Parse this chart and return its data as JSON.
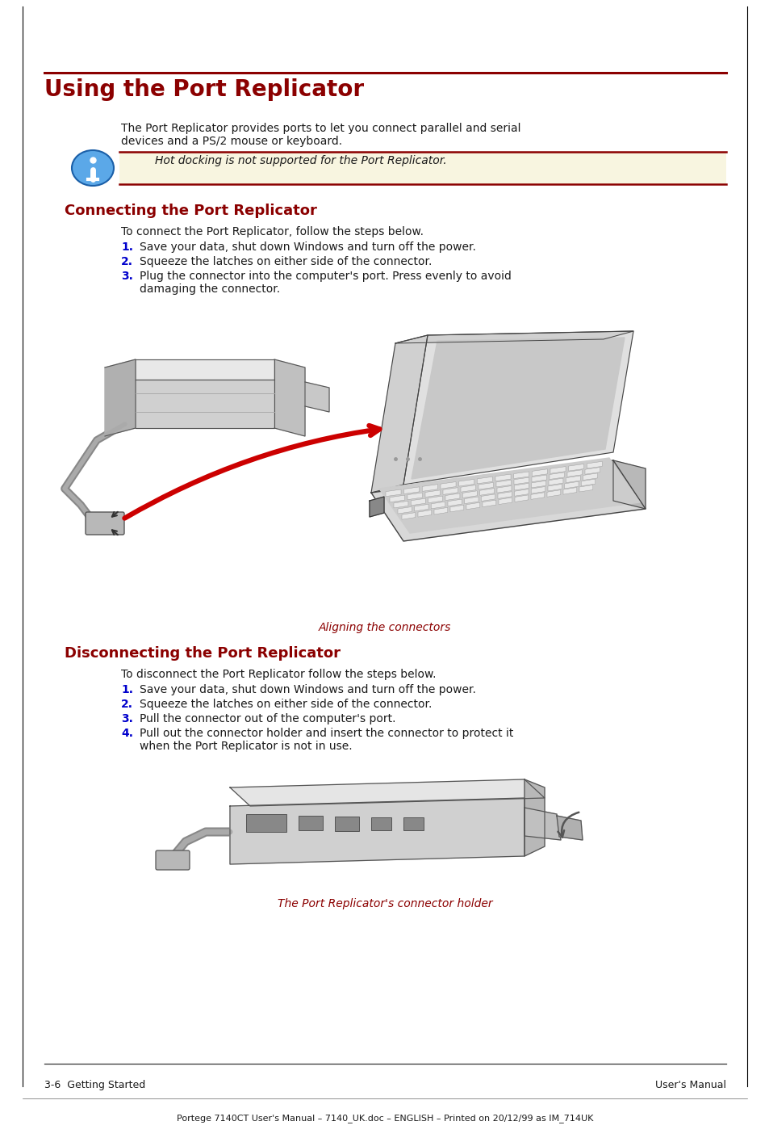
{
  "page_bg": "#ffffff",
  "dark_red": "#8B0000",
  "blue_step": "#0000CC",
  "text_color": "#1a1a1a",
  "note_bg": "#F5F5DC",
  "gray_line": "#333333",
  "main_title": "Using the Port Replicator",
  "intro_text_line1": "The Port Replicator provides ports to let you connect parallel and serial",
  "intro_text_line2": "devices and a PS/2 mouse or keyboard.",
  "note_text": "Hot docking is not supported for the Port Replicator.",
  "section1_title": "Connecting the Port Replicator",
  "connect_intro": "To connect the Port Replicator, follow the steps below.",
  "connect_step1": "Save your data, shut down Windows and turn off the power.",
  "connect_step2": "Squeeze the latches on either side of the connector.",
  "connect_step3a": "Plug the connector into the computer's port. Press evenly to avoid",
  "connect_step3b": "damaging the connector.",
  "caption1": "Aligning the connectors",
  "section2_title": "Disconnecting the Port Replicator",
  "disconnect_intro": "To disconnect the Port Replicator follow the steps below.",
  "disconnect_step1": "Save your data, shut down Windows and turn off the power.",
  "disconnect_step2": "Squeeze the latches on either side of the connector.",
  "disconnect_step3": "Pull the connector out of the computer's port.",
  "disconnect_step4a": "Pull out the connector holder and insert the connector to protect it",
  "disconnect_step4b": "when the Port Replicator is not in use.",
  "caption2": "The Port Replicator's connector holder",
  "footer_left": "3-6  Getting Started",
  "footer_right": "User's Manual",
  "footer_bottom": "Portege 7140CT User's Manual – 7140_UK.doc – ENGLISH – Printed on 20/12/99 as IM_714UK",
  "fig_width": 9.54,
  "fig_height": 14.09
}
